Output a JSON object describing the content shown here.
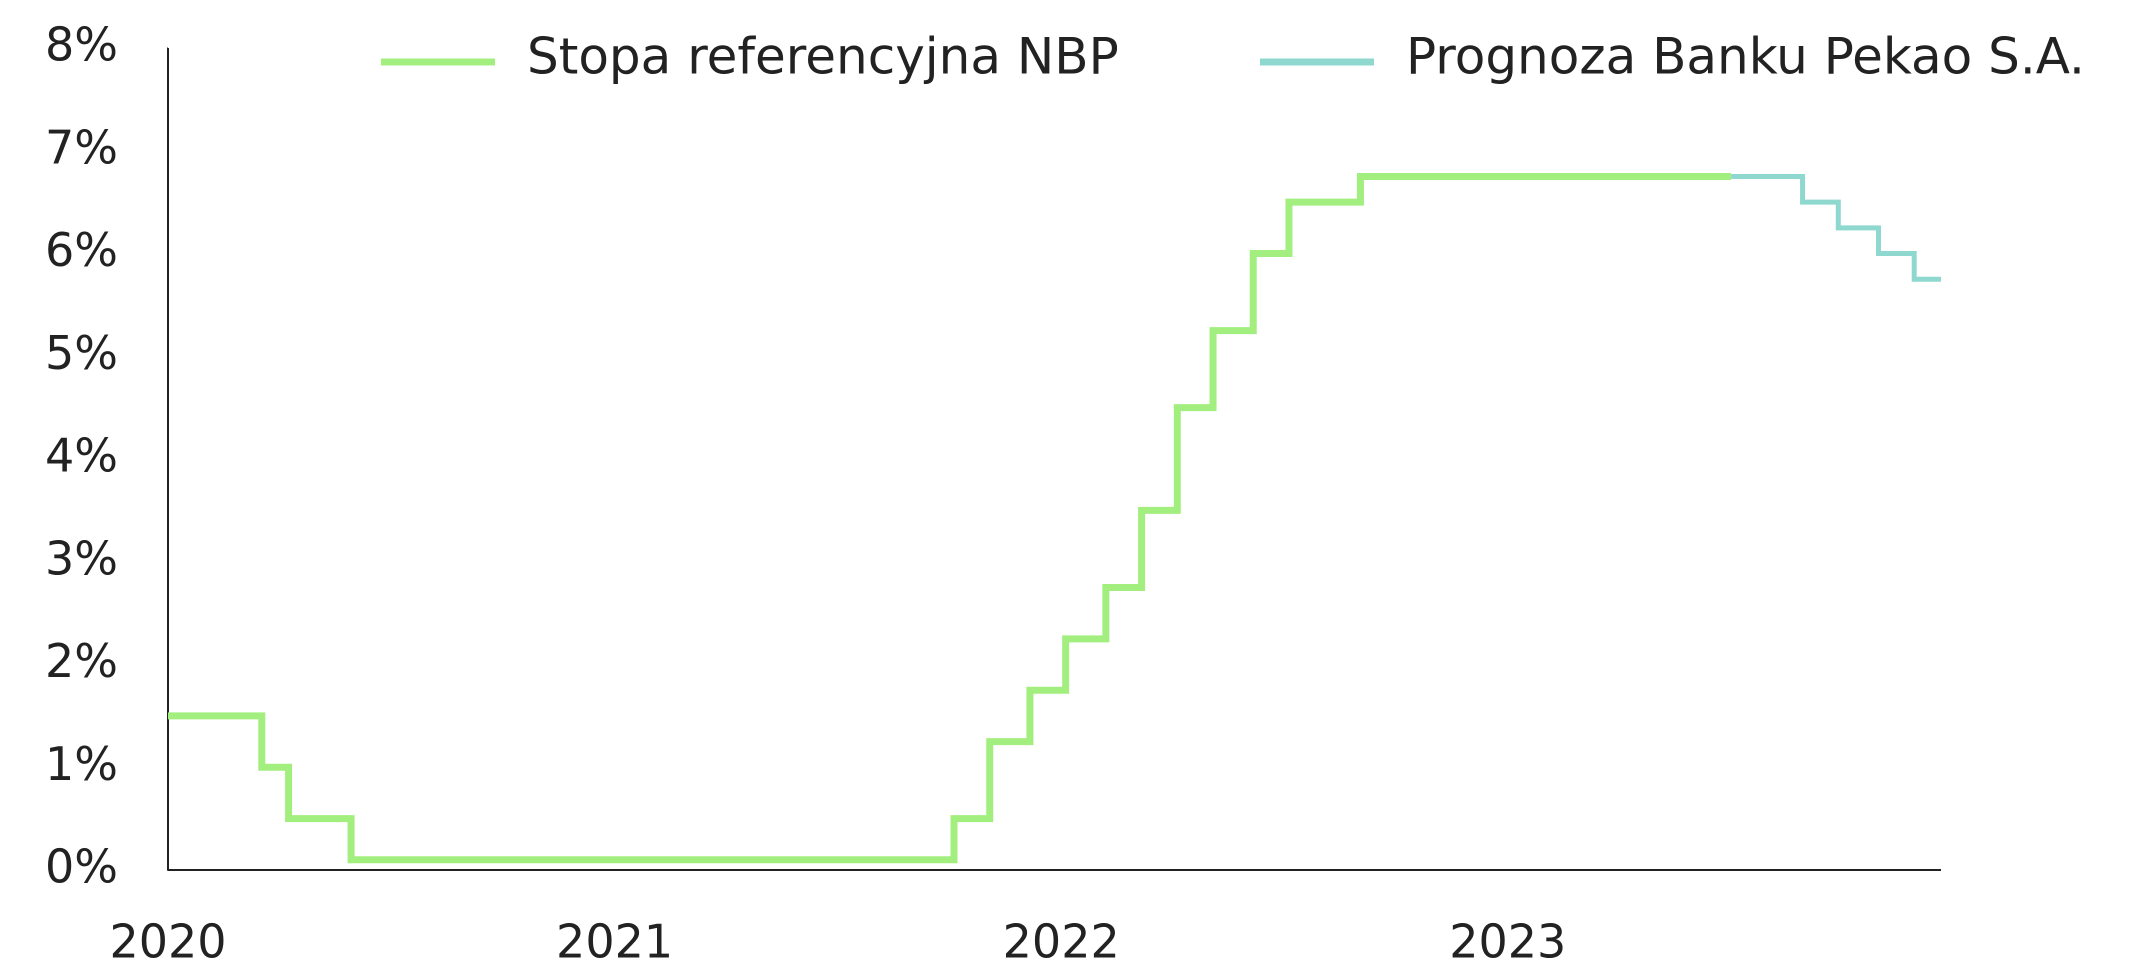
{
  "chart_data": {
    "type": "step",
    "xlim": [
      2020,
      2023.97
    ],
    "xticks": [
      2020,
      2021,
      2022,
      2023
    ],
    "ylim": [
      0,
      8
    ],
    "yticks": [
      {
        "value": 0,
        "label": "0%"
      },
      {
        "value": 1,
        "label": "1%"
      },
      {
        "value": 2,
        "label": "2%"
      },
      {
        "value": 3,
        "label": "3%"
      },
      {
        "value": 4,
        "label": "4%"
      },
      {
        "value": 5,
        "label": "5%"
      },
      {
        "value": 6,
        "label": "6%"
      },
      {
        "value": 7,
        "label": "7%"
      },
      {
        "value": 8,
        "label": "8%"
      }
    ],
    "legend": "top",
    "series": [
      {
        "name": "Stopa referencyjna NBP",
        "color": "#a2ef7f",
        "x": [
          2020.0,
          2020.21,
          2020.27,
          2020.41,
          2021.76,
          2021.84,
          2021.93,
          2022.01,
          2022.1,
          2022.18,
          2022.26,
          2022.34,
          2022.43,
          2022.51,
          2022.67,
          2023.5
        ],
        "values": [
          1.5,
          1.0,
          0.5,
          0.1,
          0.5,
          1.25,
          1.75,
          2.25,
          2.75,
          3.5,
          4.5,
          5.25,
          6.0,
          6.5,
          6.75,
          6.75
        ]
      },
      {
        "name": "Prognoza Banku Pekao S.A.",
        "color": "#8ed8d0",
        "x": [
          2023.5,
          2023.66,
          2023.74,
          2023.83,
          2023.91,
          2023.97
        ],
        "values": [
          6.75,
          6.5,
          6.25,
          6.0,
          5.75,
          5.75
        ]
      }
    ]
  }
}
